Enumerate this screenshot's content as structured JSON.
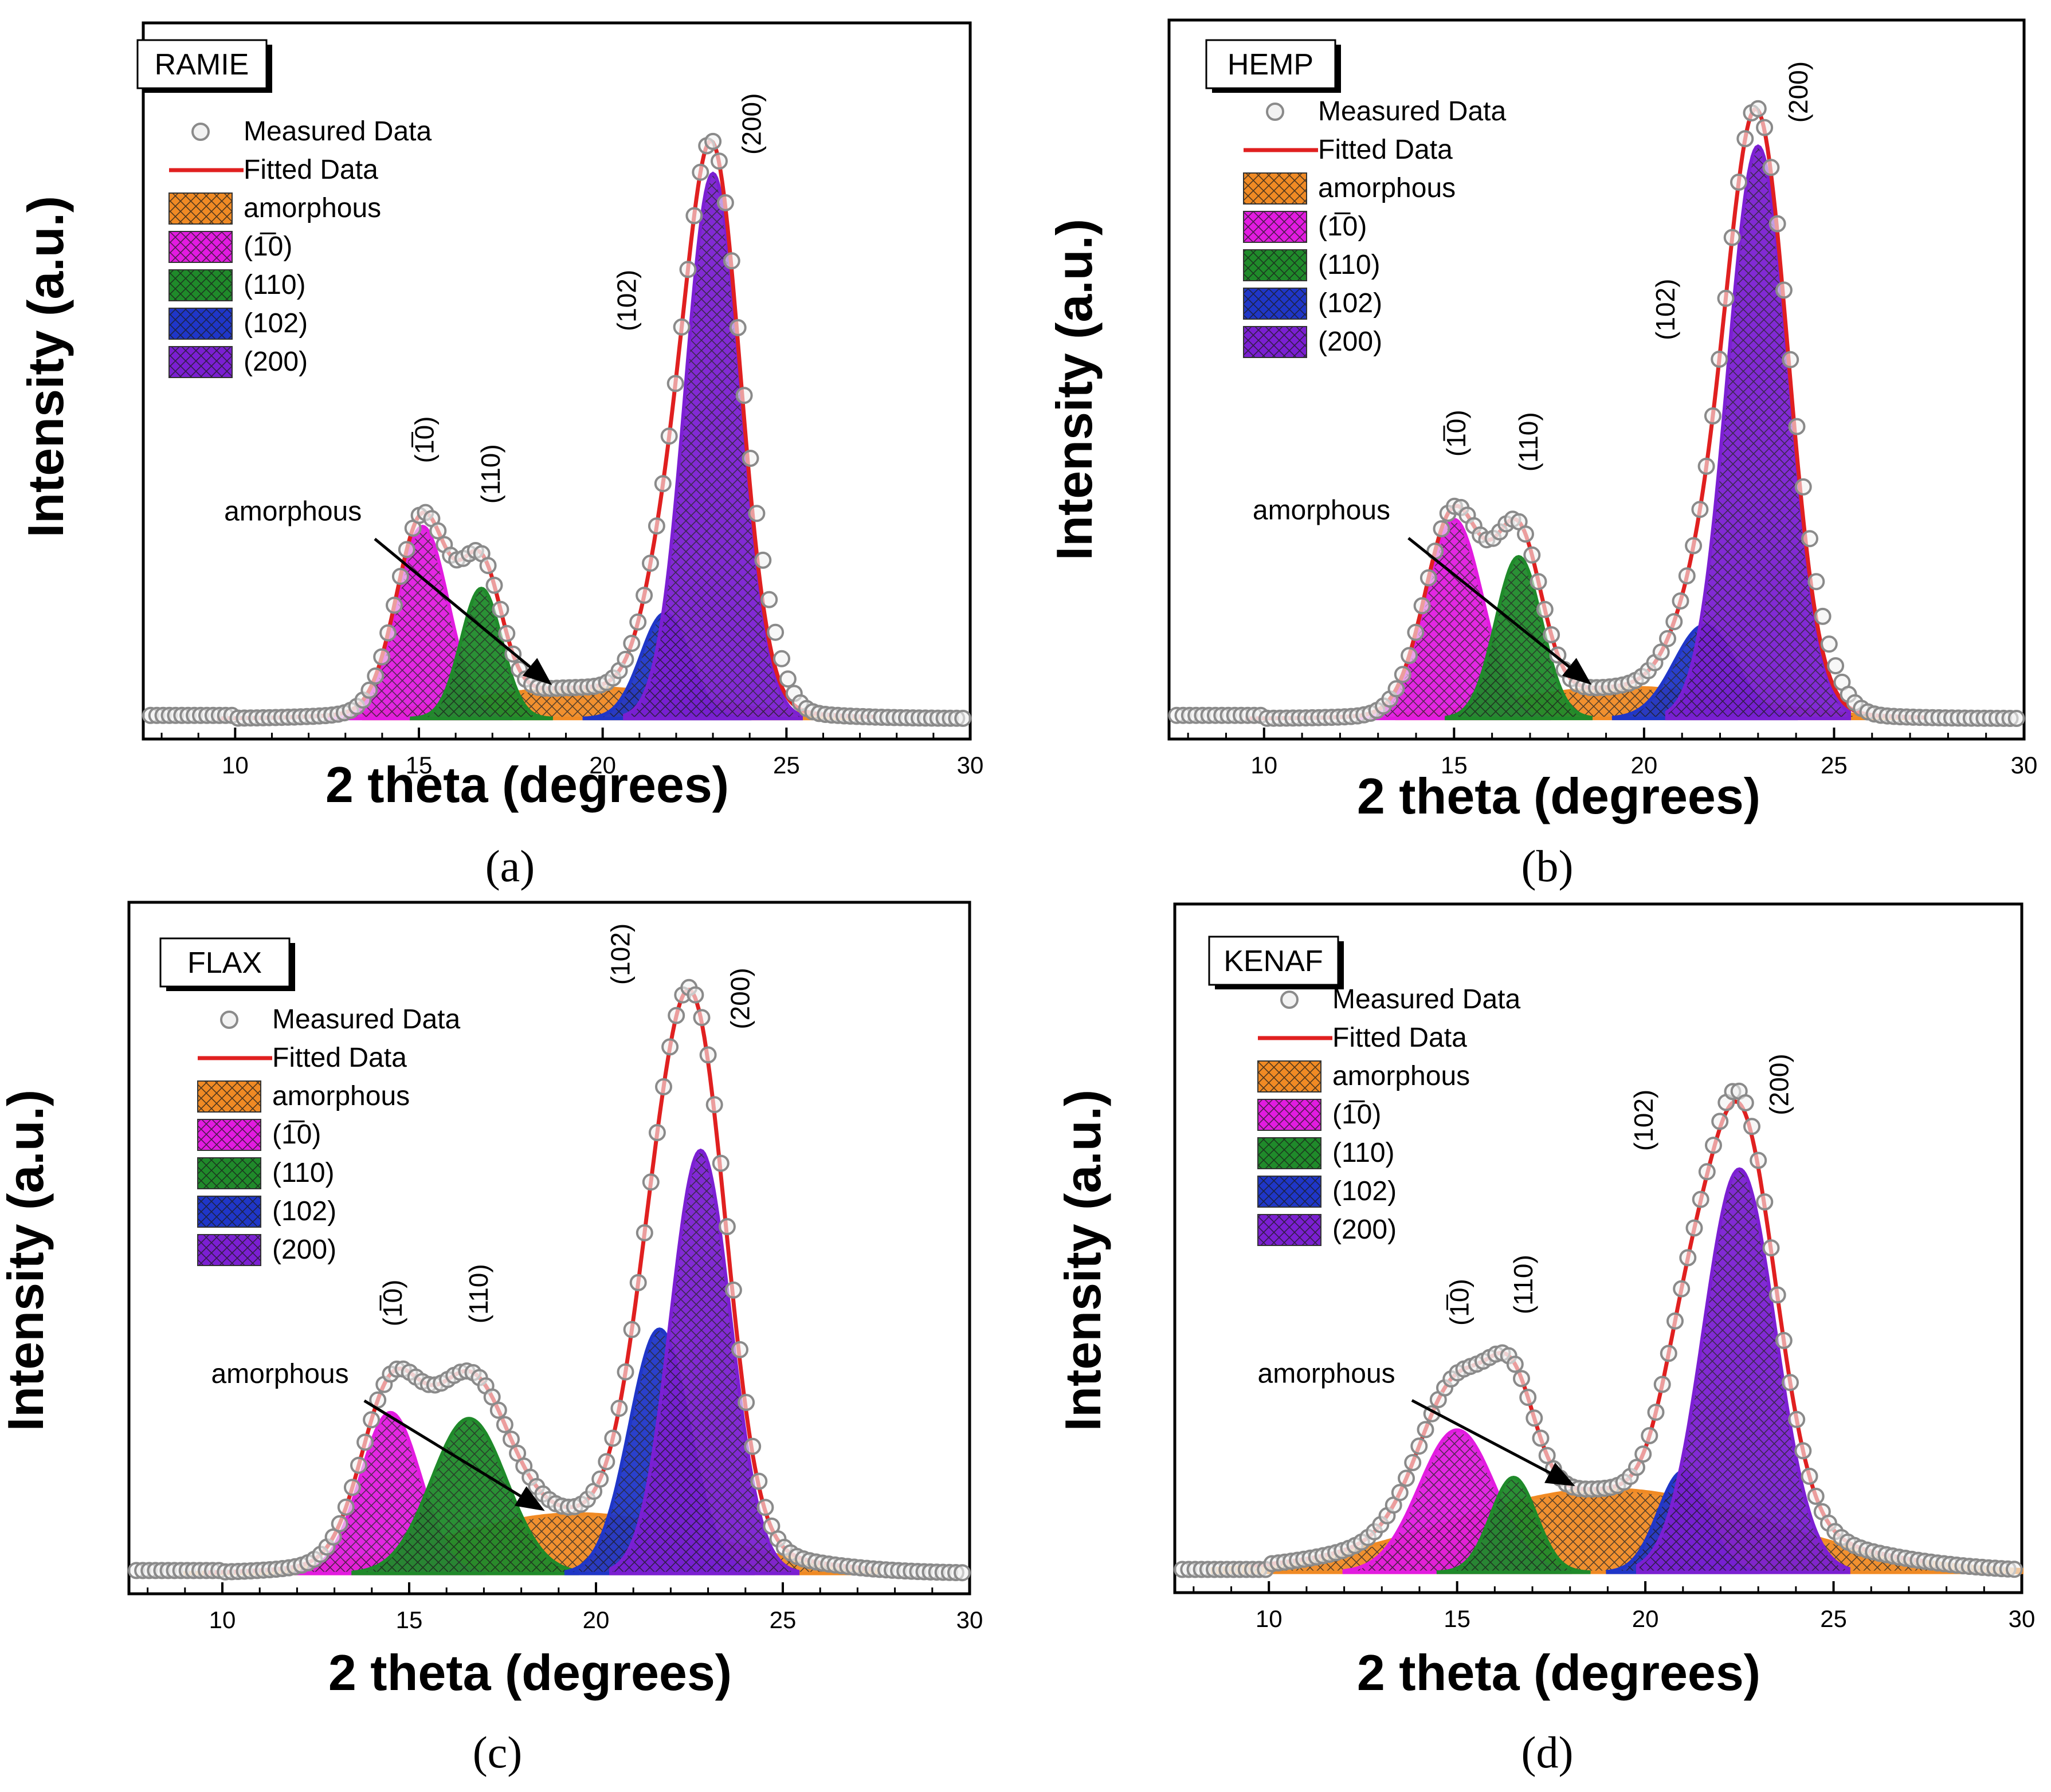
{
  "figure": {
    "legend_labels": [
      "Measured Data",
      "Fitted Data",
      "amorphous",
      "(1̅0)",
      "(110)",
      "(102)",
      "(200)"
    ],
    "colors": {
      "amorphous": "#f08a24",
      "p1m10": "#e21be0",
      "p110": "#1f8a2a",
      "p102": "#1f36c8",
      "p200": "#7b1fd2",
      "fit": "#e02020",
      "measured": "#8a8a8a"
    },
    "annotation_text": "amorphous"
  },
  "chart_data": [
    {
      "type": "line",
      "panel": "a",
      "caption": "(a)",
      "sample_label": "RAMIE",
      "xlabel": "2 theta (degrees)",
      "ylabel": "Intensity (a.u.)",
      "xlim": [
        7.5,
        30
      ],
      "ylim": [
        0,
        1.05
      ],
      "xticks": [
        10,
        15,
        20,
        25,
        30
      ],
      "peak_labels": [
        "(1̅0)",
        "(110)",
        "(102)",
        "(200)"
      ],
      "components": [
        {
          "name": "amorphous",
          "center": 19.5,
          "amplitude": 0.05,
          "width": 3.2,
          "range": [
            13.5,
            27
          ]
        },
        {
          "name": "(1̅0)",
          "center": 15.1,
          "amplitude": 0.31,
          "width": 0.7,
          "range": [
            12.5,
            17.5
          ]
        },
        {
          "name": "(110)",
          "center": 16.7,
          "amplitude": 0.21,
          "width": 0.55,
          "range": [
            14.8,
            18.6
          ]
        },
        {
          "name": "(102)",
          "center": 21.7,
          "amplitude": 0.17,
          "width": 0.65,
          "range": [
            19.5,
            24
          ]
        },
        {
          "name": "(200)",
          "center": 23.0,
          "amplitude": 0.88,
          "width": 0.75,
          "range": [
            20.6,
            25.4
          ]
        }
      ],
      "measured_extra_peak": {
        "center": 24.4,
        "amplitude": 0.07,
        "width": 0.5
      },
      "baseline": 0.01
    },
    {
      "type": "line",
      "panel": "b",
      "caption": "(b)",
      "sample_label": "HEMP",
      "xlabel": "2 theta (degrees)",
      "ylabel": "Intensity (a.u.)",
      "xlim": [
        7.5,
        30
      ],
      "ylim": [
        0,
        1.05
      ],
      "xticks": [
        10,
        15,
        20,
        25,
        30
      ],
      "peak_labels": [
        "(1̅0)",
        "(110)",
        "(102)",
        "(200)"
      ],
      "components": [
        {
          "name": "amorphous",
          "center": 19.5,
          "amplitude": 0.05,
          "width": 3.0,
          "range": [
            13.5,
            27
          ]
        },
        {
          "name": "(1̅0)",
          "center": 15.0,
          "amplitude": 0.32,
          "width": 0.75,
          "range": [
            12.5,
            17.5
          ]
        },
        {
          "name": "(110)",
          "center": 16.7,
          "amplitude": 0.26,
          "width": 0.6,
          "range": [
            14.8,
            18.6
          ]
        },
        {
          "name": "(102)",
          "center": 21.6,
          "amplitude": 0.15,
          "width": 0.8,
          "range": [
            19.2,
            24
          ]
        },
        {
          "name": "(200)",
          "center": 23.0,
          "amplitude": 0.92,
          "width": 0.8,
          "range": [
            20.6,
            25.4
          ]
        }
      ],
      "measured_extra_peak": {
        "center": 24.5,
        "amplitude": 0.06,
        "width": 0.6
      },
      "baseline": 0.01
    },
    {
      "type": "line",
      "panel": "c",
      "caption": "(c)",
      "sample_label": "FLAX",
      "xlabel": "2 theta (degrees)",
      "ylabel": "Intensity (a.u.)",
      "xlim": [
        7.5,
        30
      ],
      "ylim": [
        0,
        1.05
      ],
      "xticks": [
        10,
        15,
        20,
        25,
        30
      ],
      "peak_labels": [
        "(1̅0)",
        "(110)",
        "(102)",
        "(200)"
      ],
      "components": [
        {
          "name": "amorphous",
          "center": 19.5,
          "amplitude": 0.1,
          "width": 3.5,
          "range": [
            9,
            27.5
          ]
        },
        {
          "name": "(1̅0)",
          "center": 14.5,
          "amplitude": 0.27,
          "width": 0.8,
          "range": [
            12,
            17
          ]
        },
        {
          "name": "(110)",
          "center": 16.6,
          "amplitude": 0.26,
          "width": 1.0,
          "range": [
            13.5,
            19.5
          ]
        },
        {
          "name": "(102)",
          "center": 21.7,
          "amplitude": 0.41,
          "width": 0.8,
          "range": [
            19.2,
            24.2
          ]
        },
        {
          "name": "(200)",
          "center": 22.8,
          "amplitude": 0.71,
          "width": 0.8,
          "range": [
            20.4,
            25.4
          ]
        }
      ],
      "measured_extra_peak": {
        "center": 23.6,
        "amplitude": 0.02,
        "width": 0.6
      },
      "baseline": 0.01
    },
    {
      "type": "line",
      "panel": "d",
      "caption": "(d)",
      "sample_label": "KENAF",
      "xlabel": "2 theta (degrees)",
      "ylabel": "Intensity (a.u.)",
      "xlim": [
        7.5,
        30
      ],
      "ylim": [
        0,
        1.05
      ],
      "xticks": [
        10,
        15,
        20,
        25,
        30
      ],
      "peak_labels": [
        "(1̅0)",
        "(110)",
        "(102)",
        "(200)"
      ],
      "components": [
        {
          "name": "amorphous",
          "center": 19.0,
          "amplitude": 0.14,
          "width": 4.2,
          "range": [
            8.5,
            30
          ]
        },
        {
          "name": "(1̅0)",
          "center": 15.0,
          "amplitude": 0.24,
          "width": 1.0,
          "range": [
            12,
            18
          ]
        },
        {
          "name": "(110)",
          "center": 16.5,
          "amplitude": 0.16,
          "width": 0.6,
          "range": [
            14.5,
            18.5
          ]
        },
        {
          "name": "(102)",
          "center": 21.0,
          "amplitude": 0.17,
          "width": 0.65,
          "range": [
            19,
            23
          ]
        },
        {
          "name": "(200)",
          "center": 22.5,
          "amplitude": 0.68,
          "width": 0.95,
          "range": [
            19.8,
            25.4
          ]
        }
      ],
      "measured_extra_peak": {
        "center": 22.5,
        "amplitude": 0.02,
        "width": 0.5
      },
      "baseline": 0.01
    }
  ]
}
